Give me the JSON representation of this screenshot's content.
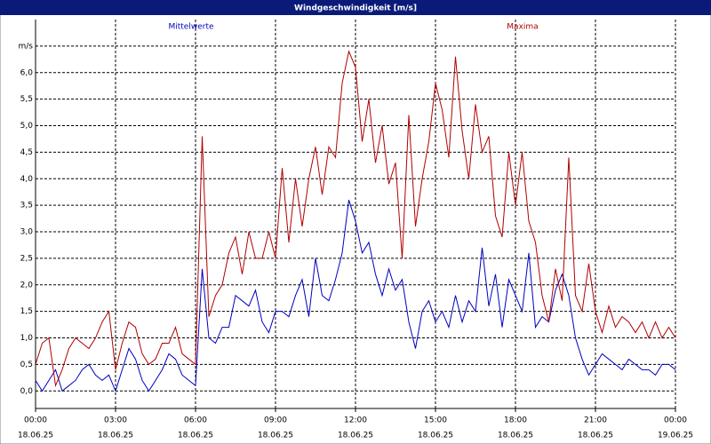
{
  "chart_data": {
    "type": "line",
    "title": "Windgeschwindigkeit [m/s]",
    "x": [
      0,
      0.25,
      0.5,
      0.75,
      1,
      1.25,
      1.5,
      1.75,
      2,
      2.25,
      2.5,
      2.75,
      3,
      3.25,
      3.5,
      3.75,
      4,
      4.25,
      4.5,
      4.75,
      5,
      5.25,
      5.5,
      5.75,
      6,
      6.25,
      6.5,
      6.75,
      7,
      7.25,
      7.5,
      7.75,
      8,
      8.25,
      8.5,
      8.75,
      9,
      9.25,
      9.5,
      9.75,
      10,
      10.25,
      10.5,
      10.75,
      11,
      11.25,
      11.5,
      11.75,
      12,
      12.25,
      12.5,
      12.75,
      13,
      13.25,
      13.5,
      13.75,
      14,
      14.25,
      14.5,
      14.75,
      15,
      15.25,
      15.5,
      15.75,
      16,
      16.25,
      16.5,
      16.75,
      17,
      17.25,
      17.5,
      17.75,
      18,
      18.25,
      18.5,
      18.75,
      19,
      19.25,
      19.5,
      19.75,
      20,
      20.25,
      20.5,
      20.75,
      21,
      21.25,
      21.5,
      21.75,
      22,
      22.25,
      22.5,
      22.75,
      23,
      23.25,
      23.5,
      23.75,
      24
    ],
    "series": [
      {
        "name": "Mittelwerte",
        "color": "#0000c0",
        "values": [
          0.2,
          0.0,
          0.2,
          0.4,
          0.0,
          0.1,
          0.2,
          0.4,
          0.5,
          0.3,
          0.2,
          0.3,
          0.0,
          0.4,
          0.8,
          0.6,
          0.2,
          0.0,
          0.2,
          0.4,
          0.7,
          0.6,
          0.3,
          0.2,
          0.1,
          2.3,
          1.0,
          0.9,
          1.2,
          1.2,
          1.8,
          1.7,
          1.6,
          1.9,
          1.3,
          1.1,
          1.5,
          1.5,
          1.4,
          1.8,
          2.1,
          1.4,
          2.5,
          1.8,
          1.7,
          2.1,
          2.6,
          3.6,
          3.2,
          2.6,
          2.8,
          2.2,
          1.8,
          2.3,
          1.9,
          2.1,
          1.3,
          0.8,
          1.5,
          1.7,
          1.3,
          1.5,
          1.2,
          1.8,
          1.3,
          1.7,
          1.5,
          2.7,
          1.6,
          2.2,
          1.2,
          2.1,
          1.8,
          1.5,
          2.6,
          1.2,
          1.4,
          1.3,
          1.9,
          2.2,
          1.8,
          1.0,
          0.6,
          0.3,
          0.5,
          0.7,
          0.6,
          0.5,
          0.4,
          0.6,
          0.5,
          0.4,
          0.4,
          0.3,
          0.5,
          0.5,
          0.4
        ]
      },
      {
        "name": "Maxima",
        "color": "#b00000",
        "values": [
          0.5,
          0.9,
          1.0,
          0.1,
          0.4,
          0.8,
          1.0,
          0.9,
          0.8,
          1.0,
          1.3,
          1.5,
          0.4,
          0.9,
          1.3,
          1.2,
          0.7,
          0.5,
          0.6,
          0.9,
          0.9,
          1.2,
          0.7,
          0.6,
          0.5,
          4.8,
          1.4,
          1.8,
          2.0,
          2.6,
          2.9,
          2.2,
          3.0,
          2.5,
          2.5,
          3.0,
          2.5,
          4.2,
          2.8,
          4.0,
          3.1,
          4.0,
          4.6,
          3.7,
          4.6,
          4.4,
          5.8,
          6.4,
          6.1,
          4.7,
          5.5,
          4.3,
          5.0,
          3.9,
          4.3,
          2.5,
          5.2,
          3.1,
          4.0,
          4.7,
          5.8,
          5.3,
          4.4,
          6.3,
          4.9,
          4.0,
          5.4,
          4.5,
          4.8,
          3.3,
          2.9,
          4.5,
          3.5,
          4.5,
          3.2,
          2.8,
          1.8,
          1.3,
          2.3,
          1.7,
          4.4,
          1.8,
          1.5,
          2.4,
          1.5,
          1.1,
          1.6,
          1.2,
          1.4,
          1.3,
          1.1,
          1.3,
          1.0,
          1.3,
          1.0,
          1.2,
          1.0
        ]
      }
    ],
    "xlim": [
      0,
      24
    ],
    "xticks": [
      {
        "value": 0,
        "label": "00:00"
      },
      {
        "value": 3,
        "label": "03:00"
      },
      {
        "value": 6,
        "label": "06:00"
      },
      {
        "value": 9,
        "label": "09:00"
      },
      {
        "value": 12,
        "label": "12:00"
      },
      {
        "value": 15,
        "label": "15:00"
      },
      {
        "value": 18,
        "label": "18:00"
      },
      {
        "value": 21,
        "label": "21:00"
      },
      {
        "value": 24,
        "label": "00:00"
      }
    ],
    "xtick_dates": [
      "18.06.25",
      "18.06.25",
      "18.06.25",
      "18.06.25",
      "18.06.25",
      "18.06.25",
      "18.06.25",
      "18.06.25",
      "19.06.25"
    ],
    "ylim": [
      -0.33,
      7.0
    ],
    "yticks": [
      {
        "value": 0,
        "label": "0,0"
      },
      {
        "value": 0.5,
        "label": "0,5"
      },
      {
        "value": 1,
        "label": "1,0"
      },
      {
        "value": 1.5,
        "label": "1,5"
      },
      {
        "value": 2,
        "label": "2,0"
      },
      {
        "value": 2.5,
        "label": "2,5"
      },
      {
        "value": 3,
        "label": "3,0"
      },
      {
        "value": 3.5,
        "label": "3,5"
      },
      {
        "value": 4,
        "label": "4,0"
      },
      {
        "value": 4.5,
        "label": "4,5"
      },
      {
        "value": 5,
        "label": "5,0"
      },
      {
        "value": 5.5,
        "label": "5,5"
      },
      {
        "value": 6,
        "label": "6,0"
      },
      {
        "value": 6.5,
        "label": "m/s"
      }
    ],
    "grid": true
  }
}
